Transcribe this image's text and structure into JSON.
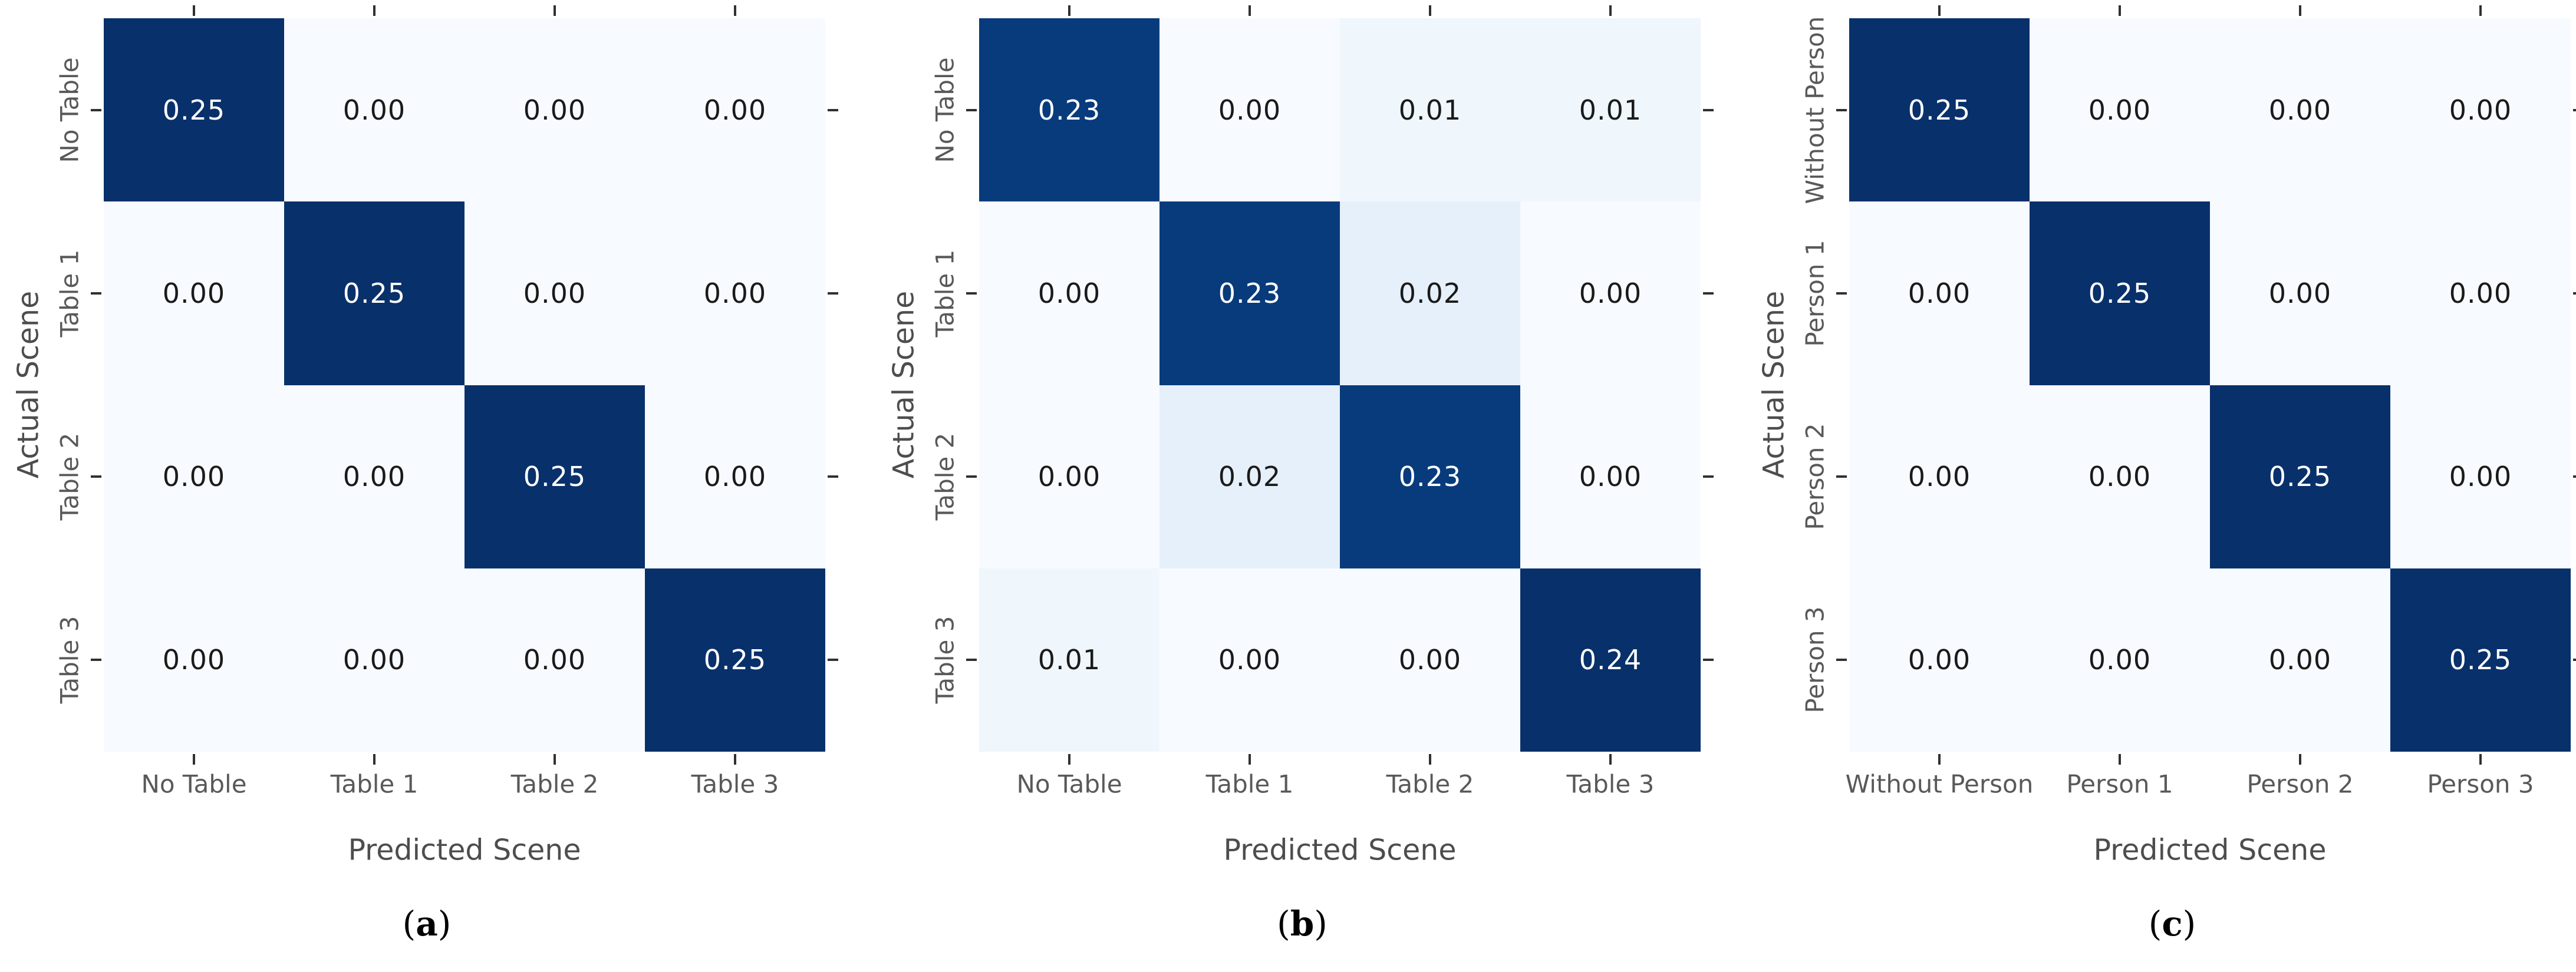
{
  "chart_data": [
    {
      "type": "heatmap",
      "caption_prefix": "(",
      "caption_letter": "a",
      "caption_suffix": ")",
      "xlabel": "Predicted Scene",
      "ylabel": "Actual Scene",
      "x_categories": [
        "No Table",
        "Table 1",
        "Table 2",
        "Table 3"
      ],
      "y_categories": [
        "No Table",
        "Table 1",
        "Table 2",
        "Table 3"
      ],
      "values": [
        [
          0.25,
          0.0,
          0.0,
          0.0
        ],
        [
          0.0,
          0.25,
          0.0,
          0.0
        ],
        [
          0.0,
          0.0,
          0.25,
          0.0
        ],
        [
          0.0,
          0.0,
          0.0,
          0.25
        ]
      ],
      "vmin": 0,
      "vmax": 0.25,
      "colormap": "Blues",
      "value_format_decimals": 2,
      "grid": false,
      "legend": "none"
    },
    {
      "type": "heatmap",
      "caption_prefix": "(",
      "caption_letter": "b",
      "caption_suffix": ")",
      "xlabel": "Predicted Scene",
      "ylabel": "Actual Scene",
      "x_categories": [
        "No Table",
        "Table 1",
        "Table 2",
        "Table 3"
      ],
      "y_categories": [
        "No Table",
        "Table 1",
        "Table 2",
        "Table 3"
      ],
      "values": [
        [
          0.23,
          0.0,
          0.01,
          0.01
        ],
        [
          0.0,
          0.23,
          0.02,
          0.0
        ],
        [
          0.0,
          0.02,
          0.23,
          0.0
        ],
        [
          0.01,
          0.0,
          0.0,
          0.24
        ]
      ],
      "vmin": 0,
      "vmax": 0.24,
      "colormap": "Blues",
      "value_format_decimals": 2,
      "grid": false,
      "legend": "none"
    },
    {
      "type": "heatmap",
      "caption_prefix": "(",
      "caption_letter": "c",
      "caption_suffix": ")",
      "xlabel": "Predicted Scene",
      "ylabel": "Actual Scene",
      "x_categories": [
        "Without Person",
        "Person 1",
        "Person 2",
        "Person 3"
      ],
      "y_categories": [
        "Without Person",
        "Person 1",
        "Person 2",
        "Person 3"
      ],
      "values": [
        [
          0.25,
          0.0,
          0.0,
          0.0
        ],
        [
          0.0,
          0.25,
          0.0,
          0.0
        ],
        [
          0.0,
          0.0,
          0.25,
          0.0
        ],
        [
          0.0,
          0.0,
          0.0,
          0.25
        ]
      ],
      "vmin": 0,
      "vmax": 0.25,
      "colormap": "Blues",
      "value_format_decimals": 2,
      "grid": false,
      "legend": "none"
    }
  ],
  "style": {
    "colormap_stops": [
      [
        0.0,
        "#f7fbff"
      ],
      [
        0.125,
        "#deebf7"
      ],
      [
        0.25,
        "#c6dbef"
      ],
      [
        0.375,
        "#9ecae1"
      ],
      [
        0.5,
        "#6baed6"
      ],
      [
        0.625,
        "#4292c6"
      ],
      [
        0.75,
        "#2171b5"
      ],
      [
        0.875,
        "#08519c"
      ],
      [
        1.0,
        "#08306b"
      ]
    ],
    "cell_text_dark": "#1a1a1a",
    "cell_text_light": "#ffffff",
    "tick_label_color": "#595959",
    "axis_label_color": "#4d4d4d",
    "tick_mark_color": "#303030",
    "background": "#ffffff"
  }
}
